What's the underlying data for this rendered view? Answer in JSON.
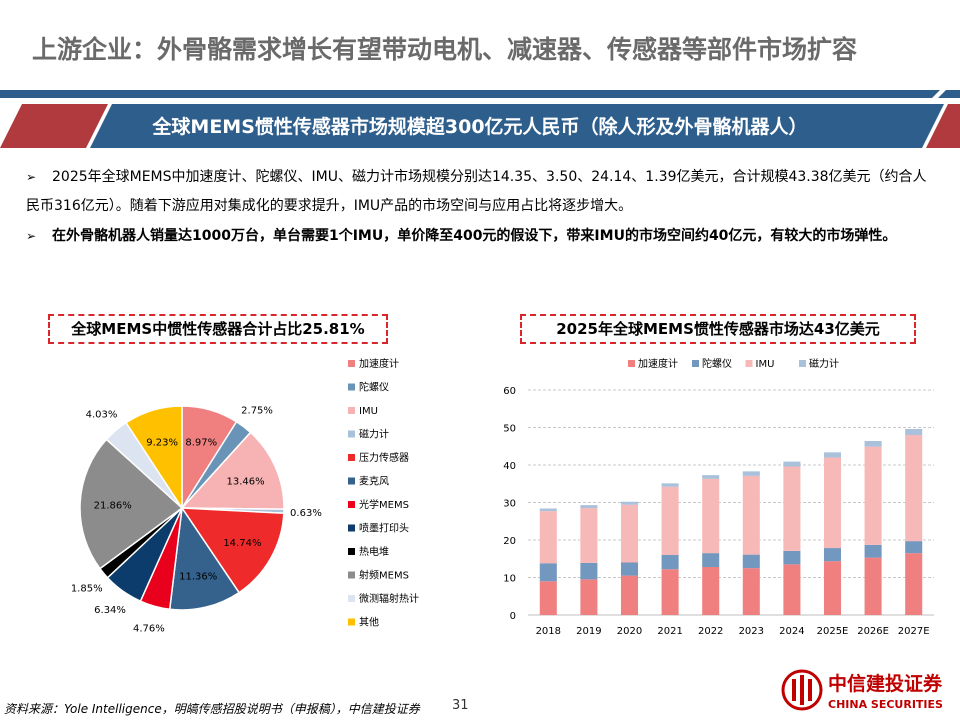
{
  "header": {
    "title": "上游企业：外骨骼需求增长有望带动电机、减速器、传感器等部件市场扩容"
  },
  "banner": {
    "text": "全球MEMS惯性传感器市场规模超300亿元人民币（除人形及外骨骼机器人）"
  },
  "bullets": [
    {
      "marker": "➢",
      "text": "2025年全球MEMS中加速度计、陀螺仪、IMU、磁力计市场规模分别达14.35、3.50、24.14、1.39亿美元，合计规模43.38亿美元（约合人民币316亿元）。随着下游应用对集成化的要求提升，IMU产品的市场空间与应用占比将逐步增大。"
    },
    {
      "marker": "➢",
      "text": "在外骨骼机器人销量达1000万台，单台需要1个IMU，单价降至400元的假设下，带来IMU的市场空间约40亿元，有较大的市场弹性。"
    }
  ],
  "colors": {
    "title_rule": "#2e5e8c",
    "banner_fill": "#2e5e8c",
    "banner_accent": "#b03a3e",
    "title_border": "#d9262c"
  },
  "chart_data": [
    {
      "type": "pie",
      "title": "全球MEMS中惯性传感器合计占比25.81%",
      "legend_position": "right",
      "slices": [
        {
          "name": "加速度计",
          "value": 8.97,
          "label": "8.97%",
          "color": "#f08080"
        },
        {
          "name": "陀螺仪",
          "value": 2.75,
          "label": "2.75%",
          "color": "#6a93b8"
        },
        {
          "name": "IMU",
          "value": 13.46,
          "label": "13.46%",
          "color": "#f7b3b3"
        },
        {
          "name": "磁力计",
          "value": 0.63,
          "label": "0.63%",
          "color": "#a9c1da"
        },
        {
          "name": "压力传感器",
          "value": 14.74,
          "label": "14.74%",
          "color": "#ee2a2a"
        },
        {
          "name": "麦克风",
          "value": 11.36,
          "label": "11.36%",
          "color": "#34628d"
        },
        {
          "name": "光学MEMS",
          "value": 4.76,
          "label": "4.76%",
          "color": "#e8001c"
        },
        {
          "name": "喷墨打印头",
          "value": 6.34,
          "label": "6.34%",
          "color": "#0b3c6b"
        },
        {
          "name": "热电堆",
          "value": 1.85,
          "label": "1.85%",
          "color": "#000000"
        },
        {
          "name": "射频MEMS",
          "value": 21.86,
          "label": "21.86%",
          "color": "#8c8c8c"
        },
        {
          "name": "微测辐射热计",
          "value": 4.03,
          "label": "4.03%",
          "color": "#dde4f1"
        },
        {
          "name": "其他",
          "value": 9.23,
          "label": "9.23%",
          "color": "#ffc000"
        }
      ]
    },
    {
      "type": "bar",
      "stacked": true,
      "title": "2025年全球MEMS惯性传感器市场达43亿美元",
      "legend_position": "top",
      "grid": true,
      "categories": [
        "2018",
        "2019",
        "2020",
        "2021",
        "2022",
        "2023",
        "2024",
        "2025E",
        "2026E",
        "2027E"
      ],
      "ylim": [
        0,
        60
      ],
      "yticks": [
        0,
        10,
        20,
        30,
        40,
        50,
        60
      ],
      "series": [
        {
          "name": "加速度计",
          "color": "#f08080",
          "values": [
            9.0,
            9.5,
            10.5,
            12.2,
            12.8,
            12.5,
            13.5,
            14.35,
            15.3,
            16.5
          ]
        },
        {
          "name": "陀螺仪",
          "color": "#7398c0",
          "values": [
            4.8,
            4.4,
            3.5,
            3.8,
            3.7,
            3.6,
            3.6,
            3.5,
            3.4,
            3.2
          ]
        },
        {
          "name": "IMU",
          "color": "#f7b8b8",
          "values": [
            13.9,
            14.6,
            15.4,
            18.2,
            19.8,
            21.0,
            22.5,
            24.14,
            26.2,
            28.3
          ]
        },
        {
          "name": "磁力计",
          "color": "#a9c1da",
          "values": [
            0.7,
            0.8,
            0.8,
            0.9,
            1.0,
            1.2,
            1.3,
            1.39,
            1.5,
            1.6
          ]
        }
      ]
    }
  ],
  "footer": {
    "source": "资料来源：Yole Intelligence，明皜传感招股说明书（申报稿），中信建投证券",
    "page_number": "31",
    "logo_cn": "中信建投证券",
    "logo_en": "CHINA SECURITIES",
    "logo_color": "#c00000"
  }
}
